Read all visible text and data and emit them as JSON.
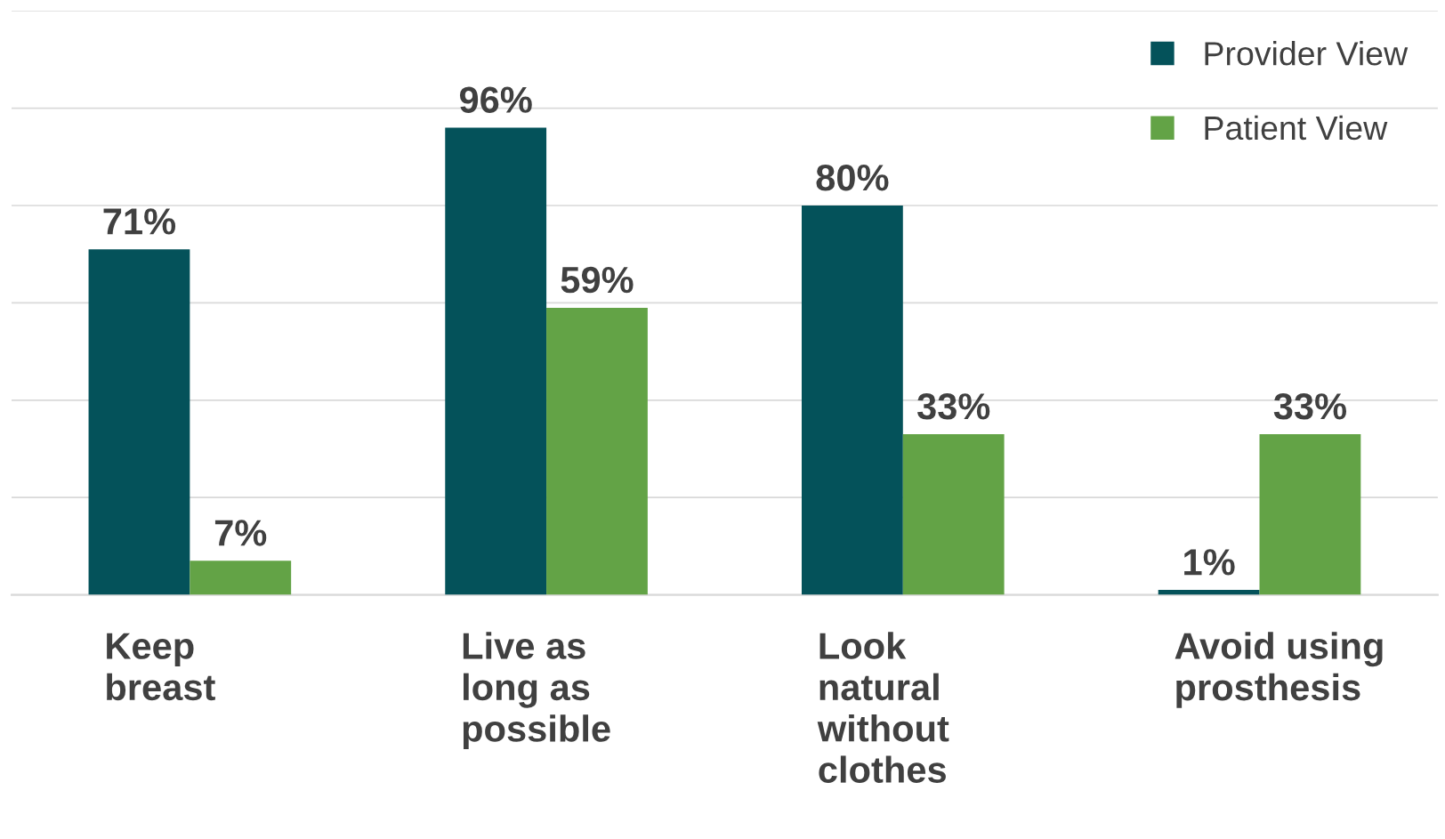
{
  "chart_data": {
    "type": "bar",
    "categories": [
      "Keep\nbreast",
      "Live as\nlong as\npossible",
      "Look\nnatural\nwithout\nclothes",
      "Avoid using\nprosthesis"
    ],
    "series": [
      {
        "name": "Provider View",
        "color": "#04525a",
        "values": [
          71,
          96,
          80,
          1
        ],
        "value_labels": [
          "71%",
          "96%",
          "80%",
          "1%"
        ]
      },
      {
        "name": "Patient View",
        "color": "#63a346",
        "values": [
          7,
          59,
          33,
          33
        ],
        "value_labels": [
          "7%",
          "59%",
          "33%",
          "33%"
        ]
      }
    ],
    "ylim": [
      0,
      120
    ],
    "yticks": [
      {
        "value": 0,
        "label": null
      },
      {
        "value": 20,
        "label": null
      },
      {
        "value": 40,
        "label": null
      },
      {
        "value": 60,
        "label": null
      },
      {
        "value": 80,
        "label": null
      },
      {
        "value": 100,
        "label": null
      },
      {
        "value": 120,
        "label": null
      }
    ],
    "tick_labels": "x",
    "grid": "y",
    "legend": "top right",
    "marker": "square"
  }
}
